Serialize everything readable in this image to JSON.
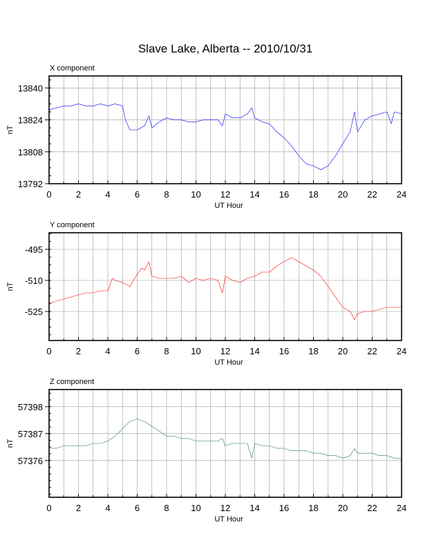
{
  "page": {
    "title": "Slave Lake, Alberta -- 2010/10/31"
  },
  "chart_data": [
    {
      "type": "line",
      "panel_title": "X component",
      "xlabel": "UT Hour",
      "ylabel": "nT",
      "xlim": [
        0,
        24
      ],
      "ylim": [
        13792,
        13846
      ],
      "x_ticks": [
        0,
        2,
        4,
        6,
        8,
        10,
        12,
        14,
        16,
        18,
        20,
        22,
        24
      ],
      "y_ticks": [
        13792,
        13808,
        13824,
        13840
      ],
      "grid": true,
      "color": "#0000ff",
      "x": [
        0,
        0.5,
        1,
        1.5,
        2,
        2.5,
        3,
        3.5,
        4,
        4.5,
        5,
        5.2,
        5.5,
        6,
        6.5,
        6.8,
        7,
        7.5,
        8,
        8.5,
        9,
        9.5,
        10,
        10.5,
        11,
        11.5,
        11.8,
        12,
        12.5,
        13,
        13.5,
        13.8,
        14,
        14.5,
        15,
        15.5,
        16,
        16.5,
        17,
        17.5,
        18,
        18.5,
        19,
        19.5,
        20,
        20.5,
        20.8,
        21,
        21.5,
        22,
        22.5,
        23,
        23.3,
        23.5,
        24
      ],
      "values": [
        13829,
        13830,
        13831,
        13831,
        13832,
        13831,
        13831,
        13832,
        13831,
        13832,
        13831,
        13824,
        13819,
        13819,
        13821,
        13826,
        13820,
        13823,
        13825,
        13824,
        13824,
        13823,
        13823,
        13824,
        13824,
        13824,
        13821,
        13827,
        13825,
        13825,
        13827,
        13830,
        13825,
        13823,
        13822,
        13818,
        13815,
        13811,
        13806,
        13802,
        13801,
        13799,
        13801,
        13806,
        13812,
        13818,
        13828,
        13818,
        13824,
        13826,
        13827,
        13828,
        13822,
        13828,
        13827
      ]
    },
    {
      "type": "line",
      "panel_title": "Y component",
      "xlabel": "UT Hour",
      "ylabel": "nT",
      "xlim": [
        0,
        24
      ],
      "ylim": [
        -539,
        -487
      ],
      "x_ticks": [
        0,
        2,
        4,
        6,
        8,
        10,
        12,
        14,
        16,
        18,
        20,
        22,
        24
      ],
      "y_ticks": [
        -525,
        -510,
        -495
      ],
      "grid": true,
      "color": "#ff0000",
      "x": [
        0,
        0.5,
        1,
        1.5,
        2,
        2.5,
        3,
        3.5,
        4,
        4.3,
        4.5,
        5,
        5.5,
        6,
        6.3,
        6.5,
        6.8,
        7,
        7.5,
        8,
        8.5,
        9,
        9.5,
        10,
        10.5,
        11,
        11.5,
        11.8,
        12,
        12.5,
        13,
        13.5,
        14,
        14.5,
        15,
        15.5,
        16,
        16.5,
        17,
        17.5,
        18,
        18.5,
        19,
        19.5,
        20,
        20.5,
        20.8,
        21,
        21.5,
        22,
        22.5,
        23,
        23.5,
        24
      ],
      "values": [
        -521,
        -520,
        -519,
        -518,
        -517,
        -516,
        -516,
        -515,
        -515,
        -509,
        -510,
        -511,
        -513,
        -507,
        -504,
        -505,
        -501,
        -508,
        -509,
        -509,
        -509,
        -508,
        -511,
        -509,
        -510,
        -509,
        -510,
        -516,
        -508,
        -510,
        -511,
        -509,
        -508,
        -506,
        -506,
        -503,
        -501,
        -499,
        -501,
        -503,
        -505,
        -508,
        -513,
        -518,
        -523,
        -525,
        -529,
        -526,
        -525,
        -525,
        -524,
        -523,
        -523,
        -523
      ]
    },
    {
      "type": "line",
      "panel_title": "Z component",
      "xlabel": "UT Hour",
      "ylabel": "nT",
      "xlim": [
        0,
        24
      ],
      "ylim": [
        57361,
        57405
      ],
      "x_ticks": [
        0,
        2,
        4,
        6,
        8,
        10,
        12,
        14,
        16,
        18,
        20,
        22,
        24
      ],
      "y_ticks": [
        57376,
        57387,
        57398
      ],
      "grid": true,
      "color": "#2e7d4f",
      "x": [
        0,
        0.5,
        1,
        1.5,
        2,
        2.5,
        3,
        3.5,
        4,
        4.5,
        5,
        5.5,
        6,
        6.5,
        7,
        7.5,
        8,
        8.5,
        9,
        9.5,
        10,
        10.5,
        11,
        11.5,
        11.8,
        12,
        12.5,
        13,
        13.5,
        13.8,
        14,
        14.5,
        15,
        15.5,
        16,
        16.5,
        17,
        17.5,
        18,
        18.5,
        19,
        19.5,
        20,
        20.5,
        20.8,
        21,
        21.5,
        22,
        22.5,
        23,
        23.5,
        24
      ],
      "values": [
        57381,
        57381,
        57382,
        57382,
        57382,
        57382,
        57383,
        57383,
        57384,
        57386,
        57389,
        57392,
        57393,
        57392,
        57390,
        57388,
        57386,
        57386,
        57385,
        57385,
        57384,
        57384,
        57384,
        57384,
        57385,
        57382,
        57383,
        57383,
        57383,
        57377,
        57383,
        57382,
        57382,
        57381,
        57381,
        57380,
        57380,
        57380,
        57379,
        57379,
        57378,
        57378,
        57377,
        57378,
        57381,
        57379,
        57379,
        57379,
        57378,
        57378,
        57377,
        57377
      ]
    }
  ]
}
